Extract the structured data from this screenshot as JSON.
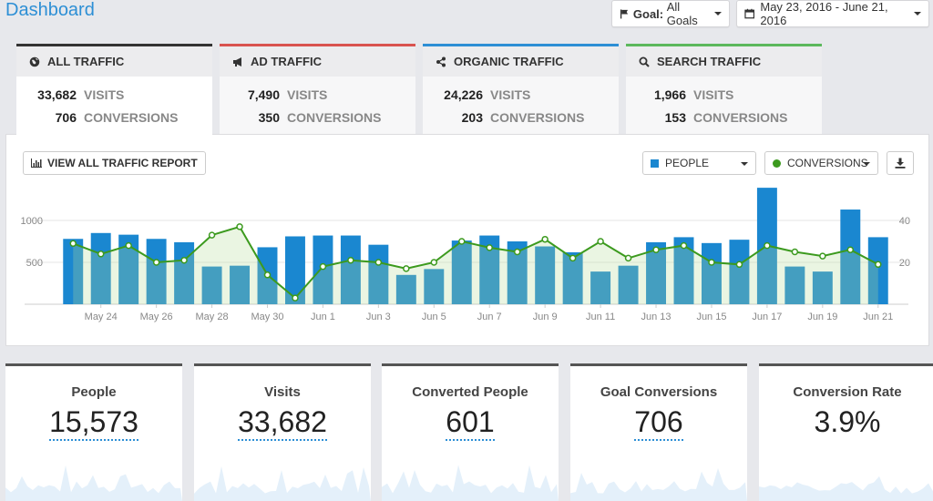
{
  "header": {
    "title": "Dashboard",
    "goal_label": "Goal:",
    "goal_value": "All Goals",
    "date_range": "May 23, 2016 - June 21, 2016"
  },
  "tabs": [
    {
      "label": "ALL TRAFFIC",
      "visits": "33,682",
      "visits_label": "VISITS",
      "conversions": "706",
      "conversions_label": "CONVERSIONS",
      "color": "#333333"
    },
    {
      "label": "AD TRAFFIC",
      "visits": "7,490",
      "visits_label": "VISITS",
      "conversions": "350",
      "conversions_label": "CONVERSIONS",
      "color": "#d9534f"
    },
    {
      "label": "ORGANIC TRAFFIC",
      "visits": "24,226",
      "visits_label": "VISITS",
      "conversions": "203",
      "conversions_label": "CONVERSIONS",
      "color": "#2d8fd5"
    },
    {
      "label": "SEARCH TRAFFIC",
      "visits": "1,966",
      "visits_label": "VISITS",
      "conversions": "153",
      "conversions_label": "CONVERSIONS",
      "color": "#5cb85c"
    }
  ],
  "panel": {
    "report_button": "VIEW ALL TRAFFIC REPORT",
    "people_select": "PEOPLE",
    "conversions_select": "CONVERSIONS"
  },
  "chart_data": {
    "type": "bar",
    "title": "",
    "categories": [
      "May 23",
      "May 24",
      "May 25",
      "May 26",
      "May 27",
      "May 28",
      "May 29",
      "May 30",
      "May 31",
      "Jun 1",
      "Jun 2",
      "Jun 3",
      "Jun 4",
      "Jun 5",
      "Jun 6",
      "Jun 7",
      "Jun 8",
      "Jun 9",
      "Jun 10",
      "Jun 11",
      "Jun 12",
      "Jun 13",
      "Jun 14",
      "Jun 15",
      "Jun 16",
      "Jun 17",
      "Jun 18",
      "Jun 19",
      "Jun 20",
      "Jun 21"
    ],
    "x_tick_labels": [
      "May 24",
      "May 26",
      "May 28",
      "May 30",
      "Jun 1",
      "Jun 3",
      "Jun 5",
      "Jun 7",
      "Jun 9",
      "Jun 11",
      "Jun 13",
      "Jun 15",
      "Jun 17",
      "Jun 19",
      "Jun 21"
    ],
    "series": [
      {
        "name": "People",
        "axis": "left",
        "color": "#1a87d0",
        "values": [
          780,
          850,
          830,
          780,
          740,
          450,
          460,
          680,
          810,
          820,
          820,
          710,
          350,
          420,
          760,
          820,
          750,
          690,
          620,
          390,
          460,
          740,
          800,
          730,
          770,
          1390,
          450,
          390,
          1130,
          800
        ]
      },
      {
        "name": "Conversions",
        "axis": "right",
        "color": "#3c9a1e",
        "values": [
          29,
          24,
          28,
          20,
          21,
          33,
          37,
          14,
          3,
          18,
          21,
          20,
          17,
          20,
          30,
          27,
          25,
          31,
          22,
          30,
          22,
          26,
          28,
          20,
          19,
          28,
          25,
          23,
          26,
          19
        ]
      }
    ],
    "y_left": {
      "ticks": [
        "500",
        "1000"
      ],
      "lim": [
        0,
        1500
      ]
    },
    "y_right": {
      "ticks": [
        "20",
        "40"
      ],
      "lim": [
        0,
        60
      ]
    }
  },
  "cards": [
    {
      "label": "People",
      "value": "15,573",
      "dotted": true,
      "border": "#555555"
    },
    {
      "label": "Visits",
      "value": "33,682",
      "dotted": true,
      "border": "#555555"
    },
    {
      "label": "Converted People",
      "value": "601",
      "dotted": true,
      "border": "#555555"
    },
    {
      "label": "Goal Conversions",
      "value": "706",
      "dotted": true,
      "border": "#555555"
    },
    {
      "label": "Conversion Rate",
      "value": "3.9%",
      "dotted": false,
      "border": "#555555"
    }
  ]
}
